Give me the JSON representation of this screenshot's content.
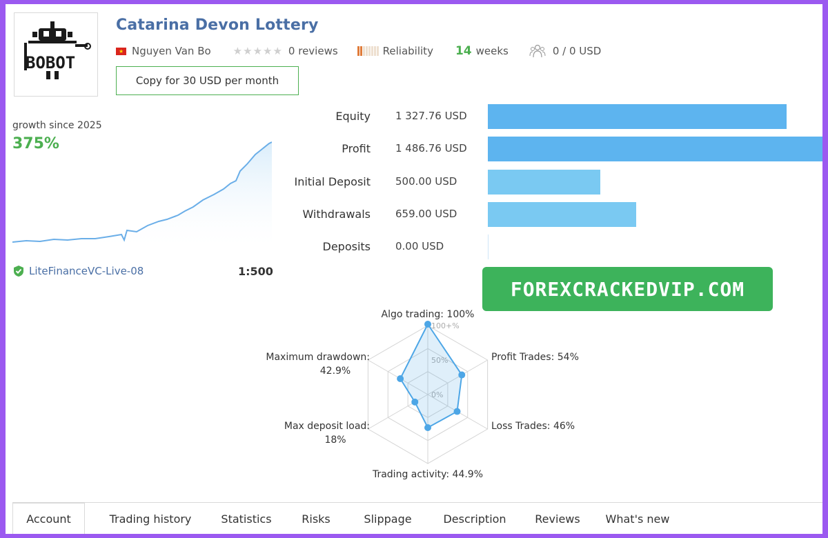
{
  "header": {
    "title": "Catarina Devon Lottery",
    "author": "Nguyen Van Bo",
    "reviews": "0 reviews",
    "reliability_label": "Reliability",
    "reliability_level": 0.2,
    "weeks_num": "14",
    "weeks_label": "weeks",
    "subscribers": "0 / 0 USD",
    "copy_button": "Copy for 30 USD per month",
    "logo_text": "BOBOT"
  },
  "growth": {
    "label": "growth since 2025",
    "value": "375%",
    "server": "LiteFinanceVC-Live-08",
    "leverage": "1:500"
  },
  "bars": [
    {
      "label": "Equity",
      "value": "1 327.76 USD",
      "amount": 1327.76,
      "color": "#5db4ef"
    },
    {
      "label": "Profit",
      "value": "1 486.76 USD",
      "amount": 1486.76,
      "color": "#5db4ef"
    },
    {
      "label": "Initial Deposit",
      "value": "500.00 USD",
      "amount": 500.0,
      "color": "#7ac9f2"
    },
    {
      "label": "Withdrawals",
      "value": "659.00 USD",
      "amount": 659.0,
      "color": "#7ac9f2"
    },
    {
      "label": "Deposits",
      "value": "0.00 USD",
      "amount": 0.0,
      "color": "#7ac9f2"
    }
  ],
  "watermark": "FOREXCRACKEDVIP.COM",
  "radar": {
    "ticks": [
      "100+%",
      "50%",
      "0%"
    ],
    "axes": [
      {
        "label": "Algo trading: 100%",
        "value": 100
      },
      {
        "label": "Profit Trades: 54%",
        "value": 54
      },
      {
        "label": "Loss Trades: 46%",
        "value": 46
      },
      {
        "label": "Trading activity: 44.9%",
        "value": 44.9
      },
      {
        "label": "Max deposit load:",
        "label2": "18%",
        "value": 18
      },
      {
        "label": "Maximum drawdown:",
        "label2": "42.9%",
        "value": 42.9
      }
    ]
  },
  "tabs": [
    "Account",
    "Trading history",
    "Statistics",
    "Risks",
    "Slippage",
    "Description",
    "Reviews",
    "What's new"
  ],
  "colors": {
    "accent_green": "#4caf50",
    "title_blue": "#4a6fa5",
    "bar_blue": "#5db4ef",
    "radar_line": "#4da6e6"
  }
}
